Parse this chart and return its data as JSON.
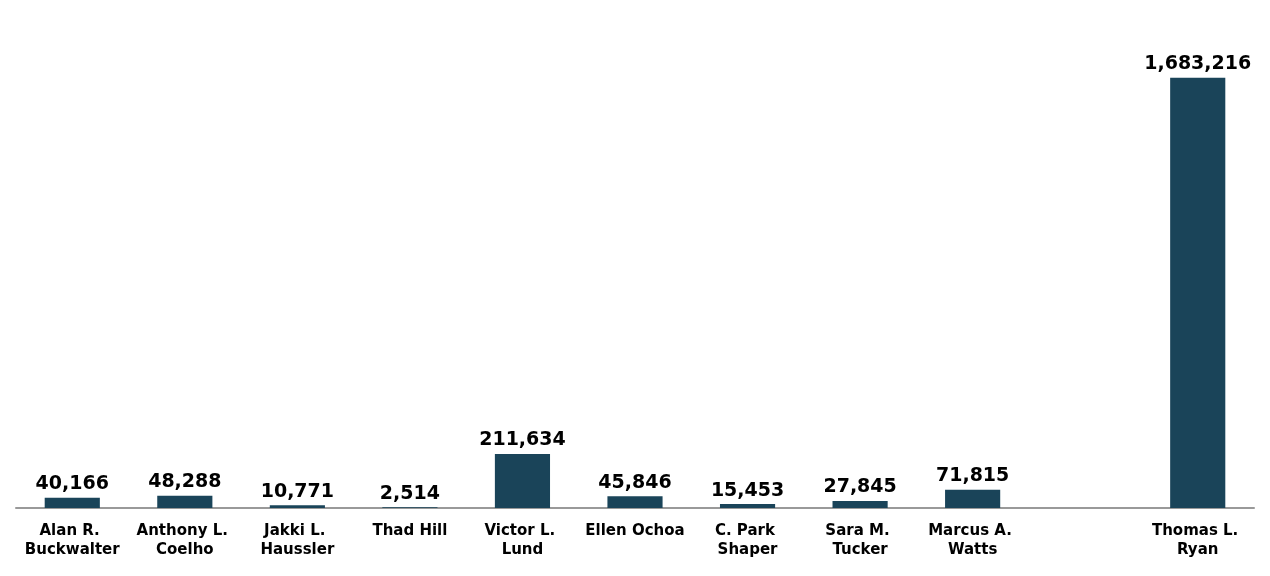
{
  "chart_data": {
    "type": "bar",
    "categories": [
      "Alan R. Buckwalter",
      "Anthony L. Coelho",
      "Jakki L. Haussler",
      "Thad Hill",
      "Victor L. Lund",
      "Ellen Ochoa",
      "C. Park Shaper",
      "Sara M. Tucker",
      "Marcus A. Watts",
      null,
      "Thomas L. Ryan"
    ],
    "values": [
      40166,
      48288,
      10771,
      2514,
      211634,
      45846,
      15453,
      27845,
      71815,
      null,
      1683216
    ],
    "value_labels": [
      "40,166",
      "48,288",
      "10,771",
      "2,514",
      "211,634",
      "45,846",
      "15,453",
      "27,845",
      "71,815",
      null,
      "1,683,216"
    ],
    "color": "#1a4459"
  }
}
